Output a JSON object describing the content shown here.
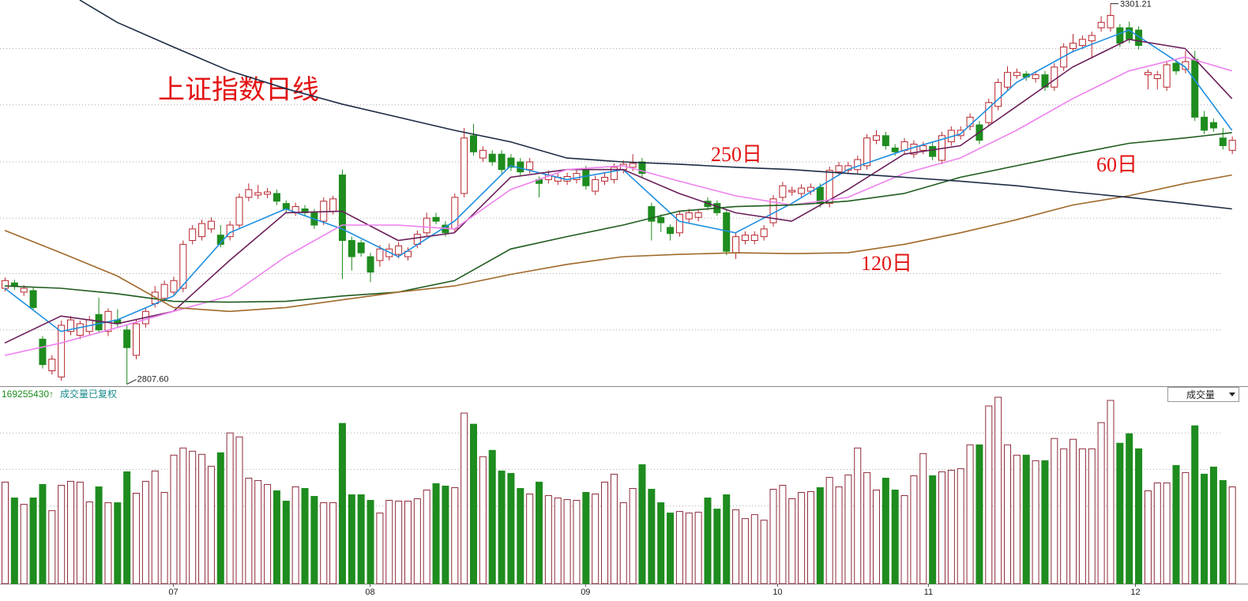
{
  "chart_data": {
    "type": "candlestick",
    "title": "上证指数日线",
    "up_color": "#b8262e",
    "down_color": "#1e8c1e",
    "ylim": [
      2805,
      3306
    ],
    "grid_lines": [
      3243,
      3170,
      3096,
      3023,
      2951,
      2878
    ],
    "candles": [
      [
        2932,
        2946,
        2928,
        2942
      ],
      [
        2939,
        2943,
        2930,
        2935
      ],
      [
        2927,
        2936,
        2922,
        2932
      ],
      [
        2929,
        2933,
        2903,
        2907
      ],
      [
        2866,
        2870,
        2828,
        2833
      ],
      [
        2825,
        2845,
        2820,
        2840
      ],
      [
        2817,
        2890,
        2812,
        2884
      ],
      [
        2876,
        2896,
        2871,
        2891
      ],
      [
        2871,
        2890,
        2866,
        2886
      ],
      [
        2876,
        2896,
        2871,
        2891
      ],
      [
        2898,
        2920,
        2874,
        2878
      ],
      [
        2876,
        2906,
        2870,
        2902
      ],
      [
        2891,
        2905,
        2881,
        2886
      ],
      [
        2878,
        2884,
        2807.6,
        2855
      ],
      [
        2845,
        2891,
        2840,
        2886
      ],
      [
        2886,
        2906,
        2881,
        2902
      ],
      [
        2912,
        2935,
        2907,
        2927
      ],
      [
        2919,
        2942,
        2915,
        2937
      ],
      [
        2927,
        2947,
        2922,
        2942
      ],
      [
        2932,
        2994,
        2927,
        2989
      ],
      [
        2994,
        3014,
        2989,
        3009
      ],
      [
        2999,
        3021,
        2994,
        3016
      ],
      [
        3009,
        3024,
        3004,
        3019
      ],
      [
        3001,
        3014,
        2985,
        2989
      ],
      [
        2999,
        3019,
        2994,
        3014
      ],
      [
        3014,
        3055,
        3009,
        3050
      ],
      [
        3050,
        3068,
        3045,
        3060
      ],
      [
        3053,
        3066,
        3048,
        3056
      ],
      [
        3054,
        3062,
        3049,
        3057
      ],
      [
        3055,
        3060,
        3040,
        3045
      ],
      [
        3042,
        3046,
        3030,
        3035
      ],
      [
        3030,
        3043,
        3026,
        3038
      ],
      [
        3035,
        3040,
        3026,
        3030
      ],
      [
        3030,
        3035,
        3009,
        3014
      ],
      [
        3019,
        3050,
        3014,
        3045
      ],
      [
        3032,
        3052,
        3028,
        3048
      ],
      [
        3079,
        3086,
        2944,
        2994
      ],
      [
        2994,
        2999,
        2955,
        2973
      ],
      [
        2991,
        2995,
        2973,
        2978
      ],
      [
        2973,
        2978,
        2940,
        2953
      ],
      [
        2968,
        2988,
        2960,
        2983
      ],
      [
        2973,
        2990,
        2968,
        2983
      ],
      [
        2976,
        2992,
        2971,
        2987
      ],
      [
        2973,
        2985,
        2968,
        2980
      ],
      [
        2989,
        3007,
        2984,
        3002
      ],
      [
        3004,
        3030,
        2999,
        3023
      ],
      [
        3024,
        3030,
        3015,
        3019
      ],
      [
        3014,
        3019,
        2999,
        3004
      ],
      [
        3009,
        3055,
        3004,
        3050
      ],
      [
        3055,
        3140,
        3050,
        3127
      ],
      [
        3130,
        3145,
        3104,
        3109
      ],
      [
        3101,
        3116,
        3096,
        3111
      ],
      [
        3106,
        3111,
        3091,
        3096
      ],
      [
        3106,
        3111,
        3081,
        3086
      ],
      [
        3101,
        3106,
        3084,
        3089
      ],
      [
        3096,
        3101,
        3078,
        3083
      ],
      [
        3086,
        3101,
        3081,
        3096
      ],
      [
        3073,
        3077,
        3050,
        3068
      ],
      [
        3073,
        3085,
        3068,
        3079
      ],
      [
        3071,
        3081,
        3066,
        3076
      ],
      [
        3071,
        3082,
        3066,
        3077
      ],
      [
        3073,
        3086,
        3068,
        3081
      ],
      [
        3086,
        3091,
        3060,
        3065
      ],
      [
        3058,
        3078,
        3053,
        3073
      ],
      [
        3071,
        3083,
        3066,
        3076
      ],
      [
        3073,
        3094,
        3068,
        3089
      ],
      [
        3086,
        3098,
        3081,
        3093
      ],
      [
        3089,
        3106,
        3084,
        3094
      ],
      [
        3096,
        3101,
        3076,
        3081
      ],
      [
        3038,
        3043,
        2994,
        3019
      ],
      [
        3024,
        3028,
        3005,
        3017
      ],
      [
        3011,
        3015,
        2994,
        3003
      ],
      [
        3004,
        3033,
        2999,
        3028
      ],
      [
        3022,
        3035,
        3017,
        3030
      ],
      [
        3024,
        3035,
        3019,
        3030
      ],
      [
        3045,
        3050,
        3033,
        3038
      ],
      [
        3042,
        3046,
        3026,
        3030
      ],
      [
        3030,
        3035,
        2975,
        2980
      ],
      [
        2978,
        3004,
        2970,
        2999
      ],
      [
        2994,
        3006,
        2989,
        3001
      ],
      [
        2994,
        3006,
        2989,
        3001
      ],
      [
        2999,
        3014,
        2994,
        3009
      ],
      [
        3017,
        3053,
        3012,
        3048
      ],
      [
        3050,
        3070,
        3045,
        3065
      ],
      [
        3057,
        3064,
        3052,
        3059
      ],
      [
        3055,
        3067,
        3050,
        3062
      ],
      [
        3058,
        3068,
        3053,
        3063
      ],
      [
        3063,
        3068,
        3037,
        3042
      ],
      [
        3042,
        3090,
        3037,
        3085
      ],
      [
        3083,
        3096,
        3078,
        3091
      ],
      [
        3085,
        3096,
        3080,
        3091
      ],
      [
        3086,
        3104,
        3081,
        3099
      ],
      [
        3091,
        3132,
        3086,
        3127
      ],
      [
        3124,
        3137,
        3119,
        3130
      ],
      [
        3130,
        3135,
        3112,
        3117
      ],
      [
        3114,
        3119,
        3104,
        3109
      ],
      [
        3111,
        3127,
        3106,
        3122
      ],
      [
        3106,
        3124,
        3101,
        3119
      ],
      [
        3111,
        3122,
        3106,
        3117
      ],
      [
        3116,
        3121,
        3098,
        3103
      ],
      [
        3098,
        3135,
        3093,
        3130
      ],
      [
        3122,
        3142,
        3117,
        3137
      ],
      [
        3130,
        3142,
        3125,
        3137
      ],
      [
        3142,
        3159,
        3137,
        3154
      ],
      [
        3144,
        3149,
        3119,
        3124
      ],
      [
        3147,
        3178,
        3142,
        3173
      ],
      [
        3168,
        3204,
        3163,
        3199
      ],
      [
        3193,
        3220,
        3188,
        3212
      ],
      [
        3208,
        3217,
        3204,
        3212
      ],
      [
        3210,
        3214,
        3201,
        3206
      ],
      [
        3204,
        3214,
        3199,
        3209
      ],
      [
        3209,
        3214,
        3188,
        3193
      ],
      [
        3193,
        3224,
        3188,
        3219
      ],
      [
        3219,
        3250,
        3214,
        3245
      ],
      [
        3243,
        3262,
        3238,
        3250
      ],
      [
        3247,
        3260,
        3242,
        3255
      ],
      [
        3253,
        3265,
        3230,
        3260
      ],
      [
        3270,
        3285,
        3265,
        3277
      ],
      [
        3270,
        3301.21,
        3265,
        3286
      ],
      [
        3270,
        3275,
        3245,
        3250
      ],
      [
        3270,
        3278,
        3250,
        3255
      ],
      [
        3267,
        3272,
        3242,
        3247
      ],
      [
        3209,
        3216,
        3190,
        3212
      ],
      [
        3204,
        3214,
        3190,
        3209
      ],
      [
        3193,
        3227,
        3188,
        3222
      ],
      [
        3224,
        3229,
        3209,
        3214
      ],
      [
        3216,
        3240,
        3211,
        3226
      ],
      [
        3229,
        3240,
        3149,
        3154
      ],
      [
        3154,
        3162,
        3132,
        3137
      ],
      [
        3147,
        3152,
        3135,
        3140
      ],
      [
        3127,
        3140,
        3112,
        3117
      ],
      [
        3111,
        3129,
        3106,
        3124
      ]
    ],
    "extreme_labels": [
      {
        "value": 3301.21,
        "label": "3301.21"
      },
      {
        "value": 2807.6,
        "label": "2807.60"
      }
    ],
    "series": [
      {
        "color": "#1e8fe0",
        "x": [
          0,
          6,
          12,
          18,
          24,
          30,
          36,
          42,
          48,
          54,
          60,
          66,
          72,
          78,
          84,
          90,
          96,
          102,
          108,
          114,
          120,
          126,
          131
        ],
        "values": [
          2932,
          2876,
          2891,
          2922,
          3004,
          3035,
          3009,
          2973,
          3019,
          3091,
          3073,
          3086,
          3019,
          3004,
          3042,
          3086,
          3111,
          3132,
          3199,
          3239,
          3267,
          3219,
          3137
        ]
      },
      {
        "color": "#6b1f5a",
        "x": [
          0,
          6,
          12,
          18,
          24,
          30,
          36,
          42,
          48,
          54,
          60,
          66,
          72,
          78,
          84,
          90,
          96,
          102,
          108,
          114,
          120,
          126,
          131
        ],
        "values": [
          2861,
          2896,
          2886,
          2902,
          2968,
          3030,
          3032,
          2994,
          3004,
          3076,
          3086,
          3086,
          3055,
          3030,
          3019,
          3060,
          3106,
          3117,
          3168,
          3219,
          3255,
          3243,
          3178
        ]
      },
      {
        "color": "#ee82ee",
        "x": [
          0,
          6,
          12,
          18,
          24,
          30,
          36,
          42,
          48,
          54,
          60,
          66,
          72,
          78,
          84,
          90,
          96,
          102,
          108,
          114,
          120,
          126,
          131
        ],
        "values": [
          2845,
          2861,
          2881,
          2902,
          2922,
          2973,
          3014,
          3014,
          3009,
          3060,
          3086,
          3091,
          3071,
          3052,
          3040,
          3050,
          3081,
          3101,
          3137,
          3178,
          3214,
          3232,
          3214
        ]
      },
      {
        "color": "#1f5c1f",
        "label": "60日",
        "x": [
          0,
          6,
          12,
          18,
          24,
          30,
          36,
          42,
          48,
          54,
          60,
          66,
          72,
          78,
          84,
          90,
          96,
          102,
          108,
          114,
          120,
          126,
          131
        ],
        "values": [
          2935,
          2932,
          2925,
          2915,
          2914,
          2915,
          2922,
          2927,
          2942,
          2983,
          2999,
          3014,
          3032,
          3038,
          3040,
          3045,
          3055,
          3076,
          3091,
          3106,
          3120,
          3127,
          3134
        ]
      },
      {
        "color": "#a0692a",
        "label": "120日",
        "x": [
          0,
          6,
          12,
          18,
          24,
          30,
          36,
          42,
          48,
          54,
          60,
          66,
          72,
          78,
          84,
          90,
          96,
          102,
          108,
          114,
          120,
          126,
          131
        ],
        "values": [
          3007,
          2978,
          2948,
          2907,
          2902,
          2907,
          2917,
          2927,
          2935,
          2950,
          2963,
          2973,
          2976,
          2978,
          2977,
          2978,
          2989,
          3004,
          3021,
          3040,
          3052,
          3068,
          3079
        ]
      },
      {
        "color": "#1c2c44",
        "label": "250日",
        "x": [
          8,
          12,
          18,
          24,
          30,
          36,
          42,
          48,
          54,
          60,
          66,
          72,
          78,
          84,
          90,
          96,
          102,
          108,
          114,
          120,
          126,
          131
        ],
        "values": [
          3306,
          3277,
          3245,
          3214,
          3191,
          3171,
          3154,
          3137,
          3122,
          3101,
          3096,
          3093,
          3089,
          3086,
          3081,
          3076,
          3071,
          3065,
          3057,
          3050,
          3042,
          3035
        ]
      }
    ],
    "volume": {
      "readout": {
        "value": 169255430,
        "label": "169255430↑"
      },
      "title": "成交量已复权",
      "selector": "成交量",
      "ylim": [
        0,
        234000000
      ],
      "grid_lines": [
        190000000,
        144000000,
        98000000
      ],
      "values": [
        128000000,
        108000000,
        100000000,
        108000000,
        125000000,
        92000000,
        124000000,
        129000000,
        128000000,
        103000000,
        122000000,
        102000000,
        102000000,
        141000000,
        114000000,
        129000000,
        142000000,
        115000000,
        162000000,
        171000000,
        167000000,
        163000000,
        148000000,
        165000000,
        190000000,
        185000000,
        133000000,
        130000000,
        125000000,
        117000000,
        104000000,
        122000000,
        120000000,
        110000000,
        102000000,
        102000000,
        202000000,
        112000000,
        112000000,
        105000000,
        89000000,
        105000000,
        104000000,
        104000000,
        107000000,
        118000000,
        126000000,
        123000000,
        121000000,
        215000000,
        201000000,
        160000000,
        168000000,
        142000000,
        139000000,
        120000000,
        113000000,
        128000000,
        111000000,
        108000000,
        106000000,
        105000000,
        115000000,
        113000000,
        128000000,
        138000000,
        102000000,
        120000000,
        150000000,
        119000000,
        102000000,
        89000000,
        91000000,
        89000000,
        90000000,
        108000000,
        94000000,
        112000000,
        93000000,
        82000000,
        87000000,
        80000000,
        119000000,
        124000000,
        107000000,
        115000000,
        116000000,
        121000000,
        134000000,
        122000000,
        137000000,
        171000000,
        140000000,
        118000000,
        133000000,
        118000000,
        111000000,
        136000000,
        164000000,
        136000000,
        141000000,
        143000000,
        145000000,
        175000000,
        175000000,
        224000000,
        235000000,
        175000000,
        162000000,
        162000000,
        155000000,
        155000000,
        183000000,
        170000000,
        182000000,
        170000000,
        170000000,
        203000000,
        231000000,
        177000000,
        189000000,
        170000000,
        117000000,
        127000000,
        127000000,
        149000000,
        140000000,
        199000000,
        138000000,
        147000000,
        130000000,
        122000000
      ]
    },
    "xticks": [
      {
        "value": 18,
        "label": "07"
      },
      {
        "value": 39,
        "label": "08"
      },
      {
        "value": 62,
        "label": "09"
      },
      {
        "value": 82.5,
        "label": "10"
      },
      {
        "value": 98.6,
        "label": "11"
      },
      {
        "value": 120.7,
        "label": "12"
      }
    ]
  }
}
